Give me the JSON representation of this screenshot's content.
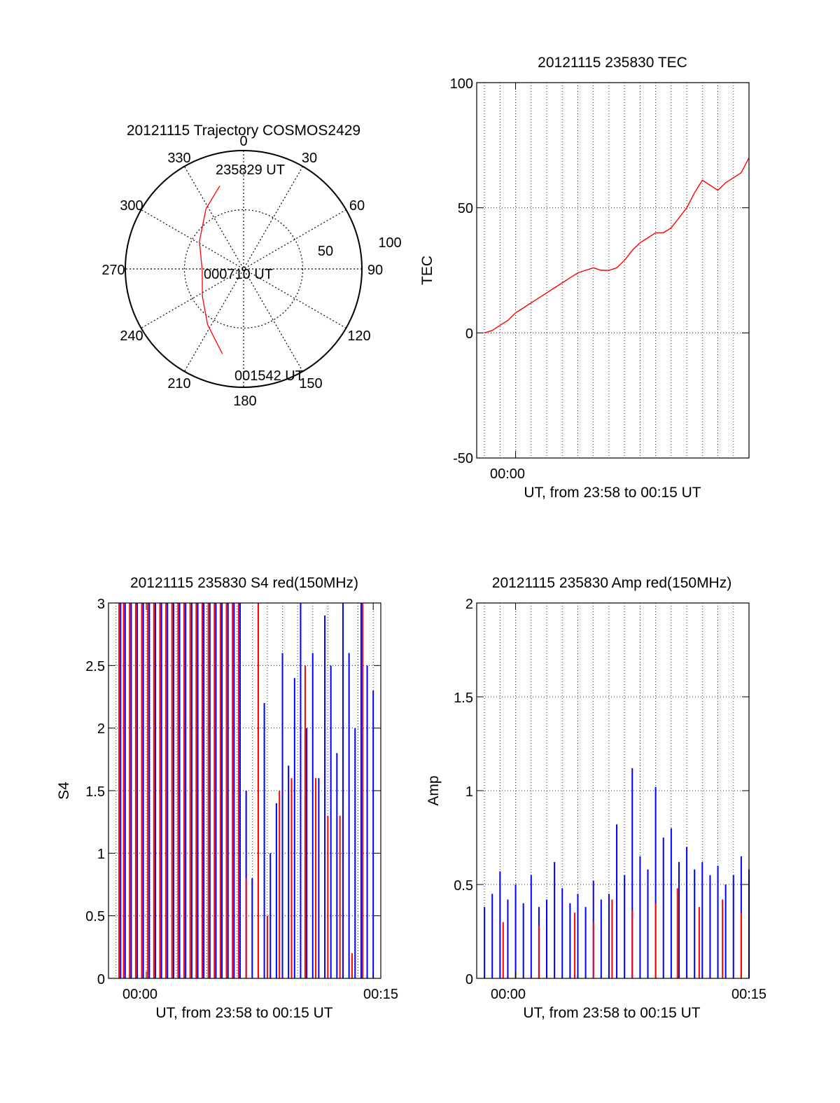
{
  "figure": {
    "polar": {
      "title": "20121115 Trajectory COSMOS2429",
      "azimuth_labels": [
        "0",
        "30",
        "60",
        "90",
        "120",
        "150",
        "180",
        "210",
        "240",
        "270",
        "300",
        "330"
      ],
      "radial_labels": [
        "50",
        "100"
      ],
      "start_label": "235829 UT",
      "mid_label": "000710 UT",
      "end_label": "001542 UT"
    },
    "tec": {
      "title": "20121115 235830 TEC",
      "ylabel": "TEC",
      "xlabel": "UT, from 23:58 to 00:15 UT",
      "yticks": [
        "100",
        "50",
        "0",
        "-50"
      ],
      "xticks": [
        "00:00"
      ]
    },
    "s4": {
      "title": "20121115 235830 S4 red(150MHz)",
      "ylabel": "S4",
      "xlabel": "UT, from 23:58 to 00:15 UT",
      "yticks": [
        "3",
        "2.5",
        "2",
        "1.5",
        "1",
        "0.5",
        "0"
      ],
      "xticks": [
        "00:00",
        "00:15"
      ]
    },
    "amp": {
      "title": "20121115 235830 Amp red(150MHz)",
      "ylabel": "Amp",
      "xlabel": "UT, from 23:58 to 00:15 UT",
      "yticks": [
        "2",
        "1.5",
        "1",
        "0.5",
        "0"
      ],
      "xticks": [
        "00:00",
        "00:15"
      ]
    }
  },
  "colors": {
    "red_series": "#ff0000",
    "blue_series": "#0000ff",
    "axes": "#000000"
  },
  "chart_data": [
    {
      "type": "scatter",
      "subtype": "polar-trajectory",
      "title": "20121115 Trajectory COSMOS2429",
      "rlim": [
        0,
        100
      ],
      "radial_ticks": [
        50,
        100
      ],
      "azimuth_ticks": [
        0,
        30,
        60,
        90,
        120,
        150,
        180,
        210,
        240,
        270,
        300,
        330
      ],
      "series": [
        {
          "color": "#ff0000",
          "points": [
            {
              "az": 344,
              "r": 73,
              "label": "235829 UT"
            },
            {
              "az": 328,
              "r": 60
            },
            {
              "az": 302,
              "r": 44
            },
            {
              "az": 268,
              "r": 35,
              "label": "000710 UT"
            },
            {
              "az": 236,
              "r": 42
            },
            {
              "az": 213,
              "r": 56
            },
            {
              "az": 194,
              "r": 74
            }
          ]
        }
      ],
      "grid": true
    },
    {
      "type": "line",
      "title": "20121115 235830 TEC",
      "xlabel": "UT, from 23:58 to 00:15 UT",
      "ylabel": "TEC",
      "x_unit": "minutes after 23:58 UT",
      "xlim": [
        -0.5,
        17
      ],
      "ylim": [
        -50,
        100
      ],
      "grid": true,
      "series": [
        {
          "color": "#ff0000",
          "x": [
            0,
            0.5,
            1,
            1.5,
            2,
            2.5,
            3,
            3.5,
            4,
            4.5,
            5,
            5.5,
            6,
            6.5,
            7,
            7.5,
            8,
            8.5,
            9,
            9.5,
            10,
            10.5,
            11,
            11.5,
            12,
            12.5,
            13,
            13.5,
            14,
            14.5,
            15,
            15.5,
            16,
            16.5,
            17
          ],
          "values": [
            0,
            1,
            3,
            5,
            8,
            10,
            12,
            14,
            16,
            18,
            20,
            22,
            24,
            25,
            26,
            25,
            25,
            26,
            29,
            33,
            36,
            38,
            40,
            40,
            42,
            46,
            50,
            56,
            61,
            59,
            57,
            60,
            62,
            64,
            70
          ]
        }
      ]
    },
    {
      "type": "bar",
      "title": "20121115 235830 S4 red(150MHz)",
      "xlabel": "UT, from 23:58 to 00:15 UT",
      "ylabel": "S4",
      "x_unit": "minutes after 23:58 UT",
      "xlim": [
        -0.5,
        17.5
      ],
      "ylim": [
        0,
        3
      ],
      "grid": true,
      "series": [
        {
          "color": "#0000ff",
          "x": [
            0.3,
            0.6,
            1.0,
            1.4,
            1.8,
            2.2,
            2.6,
            3.0,
            3.4,
            3.8,
            4.2,
            4.6,
            5.0,
            5.4,
            5.8,
            6.2,
            6.6,
            7.0,
            7.4,
            7.8,
            8.2,
            8.6,
            9.0,
            9.4,
            9.8,
            10.2,
            10.6,
            11.0,
            11.4,
            11.8,
            12.2,
            12.6,
            13.0,
            13.4,
            13.8,
            14.2,
            14.6,
            15.0,
            15.4,
            15.8,
            16.2,
            16.6,
            17.0
          ],
          "values": [
            3,
            3,
            3,
            3,
            3,
            3,
            3,
            3,
            3,
            3,
            3,
            3,
            3,
            3,
            3,
            3,
            3,
            3,
            3,
            3,
            3,
            1.5,
            0.8,
            3,
            2.2,
            1.0,
            1.4,
            2.6,
            1.7,
            2.4,
            3,
            2.0,
            2.6,
            1.6,
            2.9,
            2.5,
            1.8,
            3,
            2.6,
            2.0,
            3,
            2.5,
            2.3
          ]
        },
        {
          "color": "#ff0000",
          "x": [
            0.2,
            0.5,
            0.9,
            1.3,
            1.7,
            2.1,
            2.5,
            2.9,
            3.3,
            3.7,
            4.1,
            4.5,
            4.9,
            5.3,
            5.7,
            6.1,
            6.5,
            6.9,
            7.3,
            7.7,
            8.1,
            8.6,
            9.4,
            10.0,
            10.8,
            11.6,
            12.5,
            13.2,
            14.0,
            14.8,
            15.6,
            16.3
          ],
          "values": [
            3,
            3,
            3,
            3,
            3,
            3,
            3,
            3,
            3,
            3,
            3,
            3,
            3,
            3,
            3,
            3,
            3,
            3,
            3,
            3,
            3,
            0.8,
            3,
            0.5,
            1.5,
            1.6,
            2.5,
            1.6,
            1.3,
            1.3,
            0.2,
            3
          ]
        }
      ],
      "xticks_minutes": [
        2,
        17
      ]
    },
    {
      "type": "bar",
      "title": "20121115 235830 Amp red(150MHz)",
      "xlabel": "UT, from 23:58 to 00:15 UT",
      "ylabel": "Amp",
      "x_unit": "minutes after 23:58 UT",
      "xlim": [
        -0.5,
        17
      ],
      "ylim": [
        0,
        2
      ],
      "grid": true,
      "series": [
        {
          "color": "#0000ff",
          "x": [
            0,
            0.5,
            1,
            1.5,
            2,
            2.5,
            3,
            3.5,
            4,
            4.5,
            5,
            5.5,
            6,
            6.5,
            7,
            7.5,
            8,
            8.5,
            9,
            9.5,
            10,
            10.5,
            11,
            11.5,
            12,
            12.5,
            13,
            13.5,
            14,
            14.5,
            15,
            15.5,
            16,
            16.5,
            17
          ],
          "values": [
            0.38,
            0.45,
            0.57,
            0.42,
            0.5,
            0.4,
            0.55,
            0.38,
            0.42,
            0.62,
            0.48,
            0.4,
            0.45,
            0.38,
            0.52,
            0.42,
            0.45,
            0.82,
            0.55,
            1.12,
            0.65,
            0.58,
            1.02,
            0.75,
            0.8,
            0.62,
            0.7,
            0.58,
            0.62,
            0.55,
            0.6,
            0.5,
            0.55,
            0.65,
            0.58
          ]
        },
        {
          "color": "#ff0000",
          "x": [
            1.2,
            3.5,
            5.8,
            7.0,
            8.2,
            9.5,
            11.0,
            12.4,
            13.8,
            15.3,
            16.5
          ],
          "values": [
            0.3,
            0.28,
            0.35,
            0.3,
            0.42,
            0.36,
            0.4,
            0.48,
            0.38,
            0.42,
            0.35
          ]
        }
      ],
      "xticks_minutes": [
        2,
        17
      ]
    }
  ]
}
